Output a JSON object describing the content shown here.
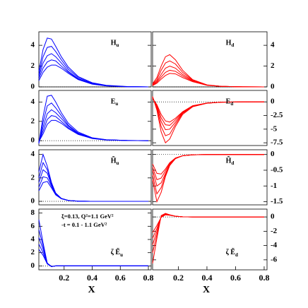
{
  "chart_data": [
    {
      "type": "line",
      "label": "H",
      "label_sub": "u",
      "xlim": [
        0.02,
        0.82
      ],
      "ylim": [
        0,
        5.3
      ],
      "yticks": [
        0,
        2,
        4
      ],
      "ytick_side": "left",
      "zero_line": true,
      "x": [
        0.02,
        0.05,
        0.08,
        0.11,
        0.14,
        0.18,
        0.23,
        0.3,
        0.4,
        0.5,
        0.65,
        0.8
      ],
      "series": [
        {
          "color": "#0000ff",
          "values": [
            1.5,
            3.6,
            4.7,
            4.6,
            3.9,
            2.9,
            1.9,
            1.0,
            0.4,
            0.15,
            0.03,
            0
          ]
        },
        {
          "color": "#0000ff",
          "values": [
            1.2,
            2.9,
            3.8,
            3.9,
            3.4,
            2.6,
            1.7,
            0.9,
            0.35,
            0.13,
            0.02,
            0
          ]
        },
        {
          "color": "#0000ff",
          "values": [
            1.0,
            2.3,
            3.0,
            3.2,
            2.9,
            2.3,
            1.5,
            0.8,
            0.3,
            0.11,
            0.02,
            0
          ]
        },
        {
          "color": "#0000ff",
          "values": [
            0.8,
            1.8,
            2.4,
            2.6,
            2.5,
            2.0,
            1.4,
            0.75,
            0.28,
            0.1,
            0.02,
            0
          ]
        },
        {
          "color": "#0000ff",
          "values": [
            0.6,
            1.4,
            1.9,
            2.1,
            2.1,
            1.8,
            1.3,
            0.7,
            0.26,
            0.09,
            0.02,
            0
          ]
        }
      ]
    },
    {
      "type": "line",
      "label": "H",
      "label_sub": "d",
      "xlim": [
        0.02,
        0.82
      ],
      "ylim": [
        0,
        5.3
      ],
      "yticks": [
        0,
        2,
        4
      ],
      "ytick_side": "right",
      "zero_line": true,
      "x": [
        0.02,
        0.05,
        0.08,
        0.11,
        0.14,
        0.18,
        0.23,
        0.3,
        0.4,
        0.5,
        0.65,
        0.8
      ],
      "series": [
        {
          "color": "#ff0000",
          "values": [
            0.3,
            0.9,
            2.0,
            2.9,
            3.1,
            2.6,
            1.6,
            0.7,
            0.2,
            0.05,
            0.01,
            0
          ]
        },
        {
          "color": "#ff0000",
          "values": [
            0.25,
            0.7,
            1.6,
            2.3,
            2.5,
            2.2,
            1.4,
            0.65,
            0.18,
            0.05,
            0.01,
            0
          ]
        },
        {
          "color": "#ff0000",
          "values": [
            0.2,
            0.55,
            1.2,
            1.8,
            2.0,
            1.8,
            1.2,
            0.6,
            0.17,
            0.05,
            0.01,
            0
          ]
        },
        {
          "color": "#ff0000",
          "values": [
            0.15,
            0.45,
            0.95,
            1.4,
            1.6,
            1.5,
            1.05,
            0.55,
            0.16,
            0.05,
            0.01,
            0
          ]
        },
        {
          "color": "#ff0000",
          "values": [
            0.12,
            0.35,
            0.75,
            1.1,
            1.3,
            1.25,
            0.9,
            0.5,
            0.15,
            0.05,
            0.01,
            0
          ]
        }
      ]
    },
    {
      "type": "line",
      "label": "E",
      "label_sub": "u",
      "xlim": [
        0.02,
        0.82
      ],
      "ylim": [
        -0.5,
        5.2
      ],
      "yticks": [
        0,
        2,
        4
      ],
      "ytick_side": "left",
      "zero_line": true,
      "x": [
        0.02,
        0.05,
        0.08,
        0.11,
        0.14,
        0.18,
        0.23,
        0.3,
        0.4,
        0.5,
        0.65,
        0.8
      ],
      "series": [
        {
          "color": "#0000ff",
          "values": [
            -0.3,
            2.5,
            4.6,
            4.7,
            4.0,
            2.9,
            1.8,
            0.9,
            0.3,
            0.1,
            0.02,
            0
          ]
        },
        {
          "color": "#0000ff",
          "values": [
            -0.25,
            1.9,
            3.6,
            3.9,
            3.4,
            2.6,
            1.6,
            0.8,
            0.28,
            0.09,
            0.02,
            0
          ]
        },
        {
          "color": "#0000ff",
          "values": [
            -0.2,
            1.4,
            2.8,
            3.2,
            2.9,
            2.3,
            1.5,
            0.75,
            0.26,
            0.08,
            0.02,
            0
          ]
        },
        {
          "color": "#0000ff",
          "values": [
            -0.15,
            1.0,
            2.2,
            2.6,
            2.5,
            2.0,
            1.35,
            0.7,
            0.24,
            0.08,
            0.02,
            0
          ]
        },
        {
          "color": "#0000ff",
          "values": [
            -0.1,
            0.7,
            1.7,
            2.1,
            2.1,
            1.8,
            1.25,
            0.65,
            0.22,
            0.07,
            0.02,
            0
          ]
        }
      ]
    },
    {
      "type": "line",
      "label": "E",
      "label_sub": "d",
      "xlim": [
        0.02,
        0.82
      ],
      "ylim": [
        -8.0,
        2.1
      ],
      "yticks": [
        0,
        -2.5,
        -5,
        -7.5
      ],
      "ytick_side": "right",
      "zero_line": true,
      "x": [
        0.02,
        0.05,
        0.08,
        0.11,
        0.14,
        0.18,
        0.23,
        0.3,
        0.4,
        0.5,
        0.65,
        0.8
      ],
      "series": [
        {
          "color": "#ff0000",
          "values": [
            1.0,
            -1.5,
            -5.5,
            -7.5,
            -6.8,
            -4.5,
            -2.3,
            -0.9,
            -0.25,
            -0.06,
            -0.01,
            0
          ]
        },
        {
          "color": "#ff0000",
          "values": [
            0.9,
            -1.2,
            -4.5,
            -6.2,
            -5.9,
            -4.1,
            -2.1,
            -0.85,
            -0.24,
            -0.06,
            -0.01,
            0
          ]
        },
        {
          "color": "#ff0000",
          "values": [
            0.8,
            -0.9,
            -3.6,
            -5.1,
            -5.0,
            -3.7,
            -2.0,
            -0.8,
            -0.23,
            -0.06,
            -0.01,
            0
          ]
        },
        {
          "color": "#ff0000",
          "values": [
            0.7,
            -0.7,
            -2.9,
            -4.2,
            -4.3,
            -3.3,
            -1.9,
            -0.75,
            -0.22,
            -0.06,
            -0.01,
            0
          ]
        },
        {
          "color": "#ff0000",
          "values": [
            0.6,
            -0.5,
            -2.3,
            -3.5,
            -3.7,
            -3.0,
            -1.8,
            -0.7,
            -0.21,
            -0.06,
            -0.01,
            0
          ]
        }
      ]
    },
    {
      "type": "line",
      "label": "H̃",
      "label_sub": "u",
      "xlim": [
        0.02,
        0.82
      ],
      "ylim": [
        -0.3,
        4.4
      ],
      "yticks": [
        0,
        2,
        4
      ],
      "ytick_side": "left",
      "zero_line": true,
      "x": [
        0.02,
        0.05,
        0.08,
        0.11,
        0.14,
        0.18,
        0.23,
        0.3,
        0.4,
        0.5,
        0.65,
        0.8
      ],
      "series": [
        {
          "color": "#0000ff",
          "values": [
            2.5,
            4.0,
            3.0,
            1.6,
            0.7,
            0.25,
            0.08,
            0.02,
            0,
            0,
            0,
            0
          ]
        },
        {
          "color": "#0000ff",
          "values": [
            2.0,
            3.3,
            2.7,
            1.5,
            0.7,
            0.25,
            0.08,
            0.02,
            0,
            0,
            0,
            0
          ]
        },
        {
          "color": "#0000ff",
          "values": [
            1.6,
            2.7,
            2.4,
            1.4,
            0.65,
            0.24,
            0.08,
            0.02,
            0,
            0,
            0,
            0
          ]
        },
        {
          "color": "#0000ff",
          "values": [
            1.2,
            2.1,
            2.0,
            1.3,
            0.6,
            0.23,
            0.08,
            0.02,
            0,
            0,
            0,
            0
          ]
        },
        {
          "color": "#0000ff",
          "values": [
            0.9,
            1.6,
            1.7,
            1.15,
            0.55,
            0.22,
            0.07,
            0.02,
            0,
            0,
            0,
            0
          ]
        }
      ]
    },
    {
      "type": "line",
      "label": "H̃",
      "label_sub": "d",
      "xlim": [
        0.02,
        0.82
      ],
      "ylim": [
        -1.6,
        0.15
      ],
      "yticks": [
        0,
        -0.5,
        -1,
        -1.5
      ],
      "ytick_side": "right",
      "zero_line": true,
      "x": [
        0.02,
        0.05,
        0.08,
        0.11,
        0.14,
        0.18,
        0.23,
        0.3,
        0.4,
        0.5,
        0.65,
        0.8
      ],
      "series": [
        {
          "color": "#ff0000",
          "values": [
            -0.8,
            -1.5,
            -1.2,
            -0.7,
            -0.35,
            -0.13,
            -0.04,
            -0.01,
            0,
            0,
            0,
            0
          ]
        },
        {
          "color": "#ff0000",
          "values": [
            -0.65,
            -1.25,
            -1.05,
            -0.65,
            -0.33,
            -0.13,
            -0.04,
            -0.01,
            0,
            0,
            0,
            0
          ]
        },
        {
          "color": "#ff0000",
          "values": [
            -0.5,
            -1.0,
            -0.9,
            -0.6,
            -0.31,
            -0.12,
            -0.04,
            -0.01,
            0,
            0,
            0,
            0
          ]
        },
        {
          "color": "#ff0000",
          "values": [
            -0.4,
            -0.8,
            -0.75,
            -0.52,
            -0.29,
            -0.12,
            -0.04,
            -0.01,
            0,
            0,
            0,
            0
          ]
        },
        {
          "color": "#ff0000",
          "values": [
            -0.3,
            -0.6,
            -0.62,
            -0.46,
            -0.26,
            -0.11,
            -0.04,
            -0.01,
            0,
            0,
            0,
            0
          ]
        }
      ]
    },
    {
      "type": "line",
      "label": "ζ Ẽ",
      "label_sub": "u",
      "xlim": [
        0.02,
        0.82
      ],
      "ylim": [
        -0.6,
        8.6
      ],
      "yticks": [
        0,
        2,
        4,
        6,
        8
      ],
      "ytick_side": "left",
      "zero_line": true,
      "xticks": [
        0.2,
        0.4,
        0.6,
        0.8
      ],
      "xlabel": "X",
      "annotations": [
        "ξ=0.13, Q²=1.1 GeV²",
        "-t = 0.1 - 1.1 GeV²"
      ],
      "x": [
        0.02,
        0.05,
        0.08,
        0.11,
        0.14,
        0.18,
        0.23,
        0.3,
        0.4,
        0.5,
        0.65,
        0.8
      ],
      "series": [
        {
          "color": "#0000ff",
          "values": [
            7.0,
            3.5,
            0.4,
            -0.1,
            0,
            0,
            0,
            0,
            0,
            0,
            0,
            0
          ]
        },
        {
          "color": "#0000ff",
          "values": [
            5.5,
            3.0,
            0.4,
            -0.1,
            0,
            0,
            0,
            0,
            0,
            0,
            0,
            0
          ]
        },
        {
          "color": "#0000ff",
          "values": [
            4.3,
            2.5,
            0.4,
            -0.1,
            0,
            0,
            0,
            0,
            0,
            0,
            0,
            0
          ]
        },
        {
          "color": "#0000ff",
          "values": [
            3.3,
            2.0,
            0.35,
            -0.1,
            0,
            0,
            0,
            0,
            0,
            0,
            0,
            0
          ]
        },
        {
          "color": "#0000ff",
          "values": [
            2.5,
            1.6,
            0.3,
            -0.1,
            0,
            0,
            0,
            0,
            0,
            0,
            0,
            0
          ]
        }
      ]
    },
    {
      "type": "line",
      "label": "ζ Ẽ",
      "label_sub": "d",
      "xlim": [
        0.02,
        0.82
      ],
      "ylim": [
        -7.4,
        1.1
      ],
      "yticks": [
        0,
        -2,
        -4,
        -6
      ],
      "ytick_side": "right",
      "zero_line": true,
      "xticks": [
        0.2,
        0.4,
        0.6,
        0.8
      ],
      "xlabel": "X",
      "x": [
        0.02,
        0.05,
        0.08,
        0.11,
        0.14,
        0.18,
        0.23,
        0.3,
        0.4,
        0.5,
        0.65,
        0.8
      ],
      "series": [
        {
          "color": "#ff0000",
          "values": [
            -6.5,
            -3.0,
            0.2,
            0.5,
            0.3,
            0.1,
            0.03,
            0,
            0,
            0,
            0,
            0
          ]
        },
        {
          "color": "#ff0000",
          "values": [
            -5.0,
            -2.5,
            0.1,
            0.45,
            0.3,
            0.1,
            0.03,
            0,
            0,
            0,
            0,
            0
          ]
        },
        {
          "color": "#ff0000",
          "values": [
            -3.9,
            -2.0,
            0.05,
            0.4,
            0.28,
            0.1,
            0.03,
            0,
            0,
            0,
            0,
            0
          ]
        },
        {
          "color": "#ff0000",
          "values": [
            -3.0,
            -1.6,
            0,
            0.35,
            0.26,
            0.1,
            0.03,
            0,
            0,
            0,
            0,
            0
          ]
        },
        {
          "color": "#ff0000",
          "values": [
            -2.2,
            -1.2,
            -0.05,
            0.3,
            0.24,
            0.1,
            0.03,
            0,
            0,
            0,
            0,
            0
          ]
        }
      ]
    }
  ]
}
